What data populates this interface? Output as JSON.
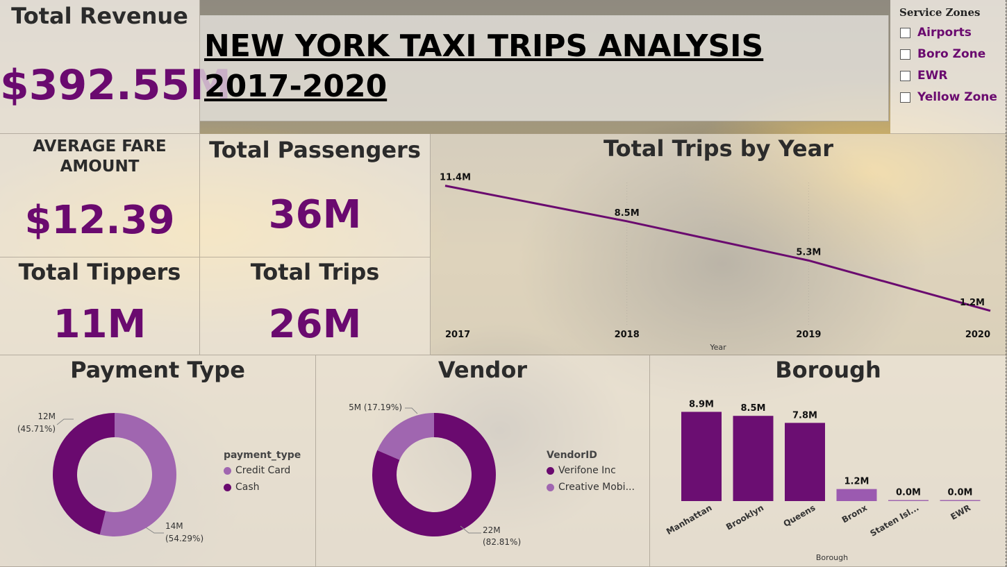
{
  "title": "NEW YORK TAXI TRIPS ANALYSIS 2017-2020",
  "kpis": {
    "revenue": {
      "label": "Total Revenue",
      "value": "$392.55M"
    },
    "avg_fare": {
      "label": "AVERAGE FARE AMOUNT",
      "value": "$12.39"
    },
    "passengers": {
      "label": "Total Passengers",
      "value": "36M"
    },
    "tippers": {
      "label": "Total Tippers",
      "value": "11M"
    },
    "trips": {
      "label": "Total Trips",
      "value": "26M"
    }
  },
  "slicer": {
    "title": "Service Zones",
    "items": [
      "Airports",
      "Boro Zone",
      "EWR",
      "Yellow Zone"
    ]
  },
  "colors": {
    "dark_purple": "#6a0a6f",
    "light_purple": "#a066b0",
    "bar_purple": "#6b0e72",
    "bronx_purple": "#9b5ab0"
  },
  "chart_data": [
    {
      "type": "line",
      "title": "Total Trips by Year",
      "xlabel": "Year",
      "x": [
        "2017",
        "2018",
        "2019",
        "2020"
      ],
      "series": [
        {
          "values": [
            11.4,
            8.5,
            5.3,
            1.2
          ]
        }
      ],
      "data_labels": [
        "11.4M",
        "8.5M",
        "5.3M",
        "1.2M"
      ],
      "ylim": [
        0,
        12
      ],
      "grid": false
    },
    {
      "type": "pie",
      "title": "Payment Type",
      "legend_title": "payment_type",
      "categories": [
        "Credit Card",
        "Cash"
      ],
      "values": [
        14,
        12
      ],
      "percents": [
        54.29,
        45.71
      ],
      "labels": [
        [
          "14M",
          "(54.29%)"
        ],
        [
          "12M",
          "(45.71%)"
        ]
      ],
      "legend_placement": "right"
    },
    {
      "type": "pie",
      "title": "Vendor",
      "legend_title": "VendorID",
      "categories": [
        "Verifone Inc",
        "Creative Mobi..."
      ],
      "values": [
        22,
        5
      ],
      "percents": [
        82.81,
        17.19
      ],
      "labels": [
        [
          "22M",
          "(82.81%)"
        ],
        [
          "5M (17.19%)"
        ]
      ],
      "legend_placement": "right"
    },
    {
      "type": "bar",
      "title": "Borough",
      "xlabel": "Borough",
      "categories": [
        "Manhattan",
        "Brooklyn",
        "Queens",
        "Bronx",
        "Staten Isl...",
        "EWR"
      ],
      "values": [
        8.9,
        8.5,
        7.8,
        1.2,
        0.0,
        0.0
      ],
      "data_labels": [
        "8.9M",
        "8.5M",
        "7.8M",
        "1.2M",
        "0.0M",
        "0.0M"
      ],
      "ylim": [
        0,
        9
      ]
    }
  ]
}
